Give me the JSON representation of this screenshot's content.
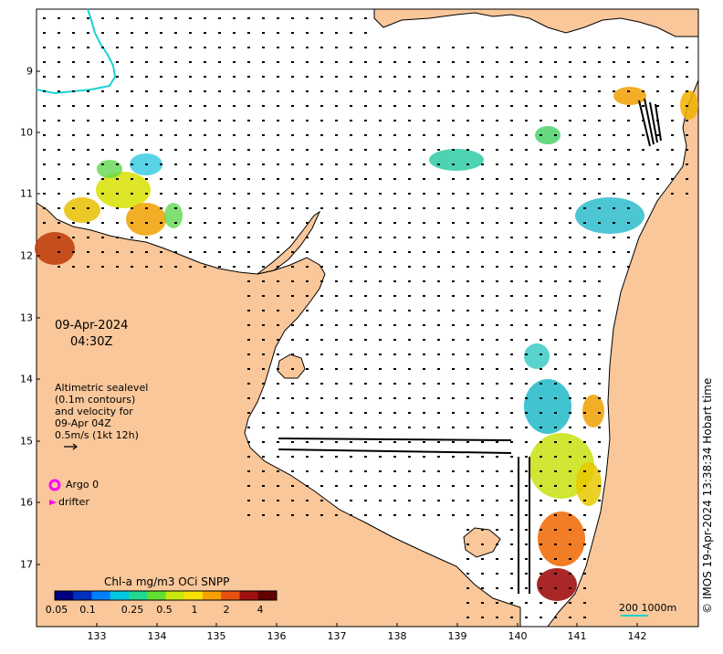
{
  "map": {
    "date_line1": "09-Apr-2024",
    "date_line2": "04:30Z",
    "legend_lines": [
      "Altimetric sealevel",
      "(0.1m contours)",
      "and velocity for",
      "09-Apr 04Z",
      "0.5m/s (1kt 12h)"
    ],
    "argo_label": "Argo 0",
    "drifter_label": "drifter",
    "colorbar_title": "Chl-a mg/m3 OCi SNPP",
    "colorbar_ticks": [
      "0.05",
      "0.1",
      "0.25",
      "0.5",
      "1",
      "2",
      "4"
    ],
    "scale_label": "200  1000m",
    "credit": "© IMOS 19-Apr-2024 13:38:34 Hobart time",
    "x_ticks": [
      "133",
      "134",
      "135",
      "136",
      "137",
      "138",
      "139",
      "140",
      "141",
      "142"
    ],
    "y_ticks": [
      "9",
      "10",
      "11",
      "12",
      "13",
      "14",
      "15",
      "16",
      "17"
    ],
    "colors": {
      "land": "#f9c79a",
      "ocean": "#ffffff",
      "coast": "#000000",
      "argo": "#ff00ff",
      "bathy": "#19d3d3"
    },
    "colorbar_colors": [
      "#000080",
      "#0030c0",
      "#0080ff",
      "#00c8e0",
      "#20d890",
      "#60e030",
      "#c8e810",
      "#f8e000",
      "#f8a000",
      "#e85010",
      "#a01010",
      "#600000"
    ]
  }
}
